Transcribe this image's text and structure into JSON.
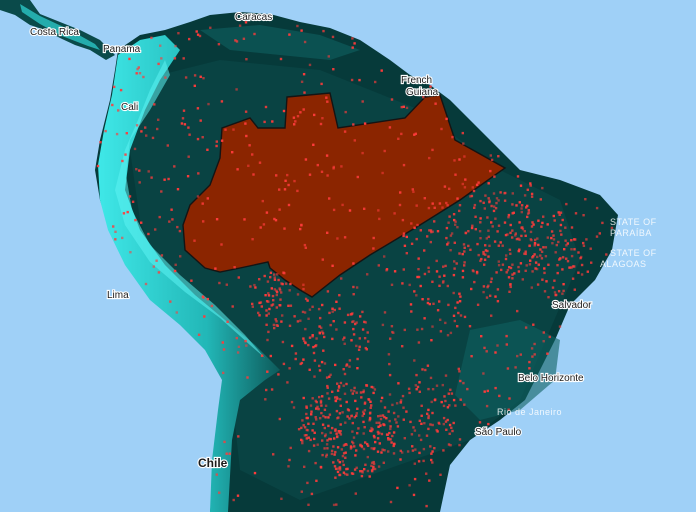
{
  "map": {
    "colors": {
      "ocean": "#9fd0f7",
      "land_dark": "#063a3a",
      "land_mid": "#0d5a5a",
      "highland": "#2fd6d6",
      "points": "#ff3b3b",
      "polygon_fill": "#8b2500",
      "polygon_stroke": "#141414"
    },
    "labels": {
      "caracas": "Caracas",
      "costa_rica": "Costa Rica",
      "panama": "Panama",
      "cali": "Cali",
      "french_guiana_1": "French",
      "french_guiana_2": "Guiana",
      "lima": "Lima",
      "salvador": "Salvador",
      "belo_horizonte": "Belo Horizonte",
      "rio": "Rio de Janeiro",
      "sao_paulo": "São Paulo",
      "chile": "Chile",
      "state_of_pa_1": "STATE OF",
      "state_of_pa_2": "PARAÍBA",
      "state_of_al_1": "STATE OF",
      "state_of_al_2": "ALAGOAS"
    },
    "layers": {
      "points_layer": "red point occurrences",
      "polygon_layer": "highlighted region"
    }
  }
}
